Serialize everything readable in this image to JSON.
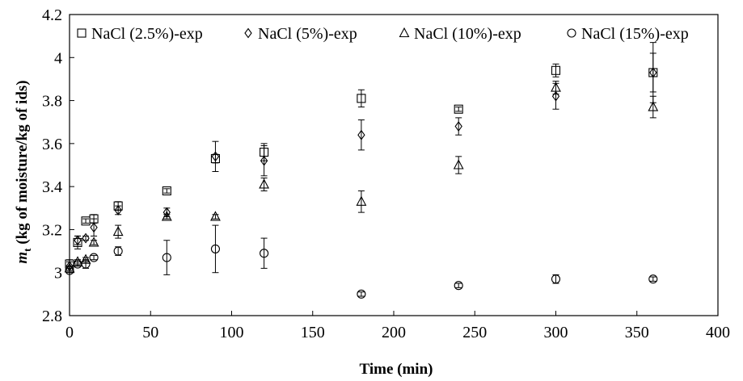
{
  "chart_data": {
    "type": "scatter",
    "title": "",
    "xlabel": "Time (min)",
    "ylabel_main": "m",
    "ylabel_sub": "t",
    "ylabel_rest": " (kg of moisture/kg  of ids)",
    "xlim": [
      0,
      400
    ],
    "ylim": [
      2.8,
      4.2
    ],
    "xticks": [
      0,
      50,
      100,
      150,
      200,
      250,
      300,
      350,
      400
    ],
    "yticks": [
      2.8,
      3,
      3.2,
      3.4,
      3.6,
      3.8,
      4,
      4.2
    ],
    "ytick_labels": [
      "2.8",
      "3",
      "3.2",
      "3.4",
      "3.6",
      "3.8",
      "4",
      "4.2"
    ],
    "grid": false,
    "legend_position": "top",
    "series": [
      {
        "name": "NaCl (2.5%)-exp",
        "marker": "square",
        "points": [
          {
            "x": 0,
            "y": 3.04,
            "err": 0.02
          },
          {
            "x": 5,
            "y": 3.14,
            "err": 0.03
          },
          {
            "x": 10,
            "y": 3.24,
            "err": 0.01
          },
          {
            "x": 15,
            "y": 3.25,
            "err": 0.02
          },
          {
            "x": 30,
            "y": 3.31,
            "err": 0.02
          },
          {
            "x": 60,
            "y": 3.38,
            "err": 0.01
          },
          {
            "x": 90,
            "y": 3.53,
            "err": 0.02
          },
          {
            "x": 120,
            "y": 3.56,
            "err": 0.04
          },
          {
            "x": 180,
            "y": 3.81,
            "err": 0.04
          },
          {
            "x": 240,
            "y": 3.76,
            "err": 0.01
          },
          {
            "x": 300,
            "y": 3.94,
            "err": 0.03
          },
          {
            "x": 360,
            "y": 3.93,
            "err": 0.14
          }
        ]
      },
      {
        "name": "NaCl (5%)-exp",
        "marker": "diamond",
        "points": [
          {
            "x": 0,
            "y": 3.03,
            "err": 0.02
          },
          {
            "x": 5,
            "y": 3.15,
            "err": 0.02
          },
          {
            "x": 10,
            "y": 3.16,
            "err": 0.01
          },
          {
            "x": 15,
            "y": 3.21,
            "err": 0.04
          },
          {
            "x": 30,
            "y": 3.29,
            "err": 0.02
          },
          {
            "x": 60,
            "y": 3.28,
            "err": 0.02
          },
          {
            "x": 90,
            "y": 3.54,
            "err": 0.07
          },
          {
            "x": 120,
            "y": 3.52,
            "err": 0.07
          },
          {
            "x": 180,
            "y": 3.64,
            "err": 0.07
          },
          {
            "x": 240,
            "y": 3.68,
            "err": 0.04
          },
          {
            "x": 300,
            "y": 3.82,
            "err": 0.06
          },
          {
            "x": 360,
            "y": 3.93,
            "err": 0.09
          }
        ]
      },
      {
        "name": "NaCl (10%)-exp",
        "marker": "triangle",
        "points": [
          {
            "x": 0,
            "y": 3.02,
            "err": 0.01
          },
          {
            "x": 5,
            "y": 3.05,
            "err": 0.01
          },
          {
            "x": 10,
            "y": 3.06,
            "err": 0.01
          },
          {
            "x": 15,
            "y": 3.14,
            "err": 0.01
          },
          {
            "x": 30,
            "y": 3.19,
            "err": 0.03
          },
          {
            "x": 60,
            "y": 3.26,
            "err": 0.01
          },
          {
            "x": 90,
            "y": 3.26,
            "err": 0.01
          },
          {
            "x": 120,
            "y": 3.41,
            "err": 0.03
          },
          {
            "x": 180,
            "y": 3.33,
            "err": 0.05
          },
          {
            "x": 240,
            "y": 3.5,
            "err": 0.04
          },
          {
            "x": 300,
            "y": 3.86,
            "err": 0.03
          },
          {
            "x": 360,
            "y": 3.77,
            "err": 0.05
          }
        ]
      },
      {
        "name": "NaCl (15%)-exp",
        "marker": "circle",
        "points": [
          {
            "x": 0,
            "y": 3.01,
            "err": 0.01
          },
          {
            "x": 5,
            "y": 3.04,
            "err": 0.01
          },
          {
            "x": 10,
            "y": 3.04,
            "err": 0.02
          },
          {
            "x": 15,
            "y": 3.07,
            "err": 0.01
          },
          {
            "x": 30,
            "y": 3.1,
            "err": 0.02
          },
          {
            "x": 60,
            "y": 3.07,
            "err": 0.08
          },
          {
            "x": 90,
            "y": 3.11,
            "err": 0.11
          },
          {
            "x": 120,
            "y": 3.09,
            "err": 0.07
          },
          {
            "x": 180,
            "y": 2.9,
            "err": 0.01
          },
          {
            "x": 240,
            "y": 2.94,
            "err": 0.01
          },
          {
            "x": 300,
            "y": 2.97,
            "err": 0.02
          },
          {
            "x": 360,
            "y": 2.97,
            "err": 0.01
          }
        ]
      }
    ]
  }
}
